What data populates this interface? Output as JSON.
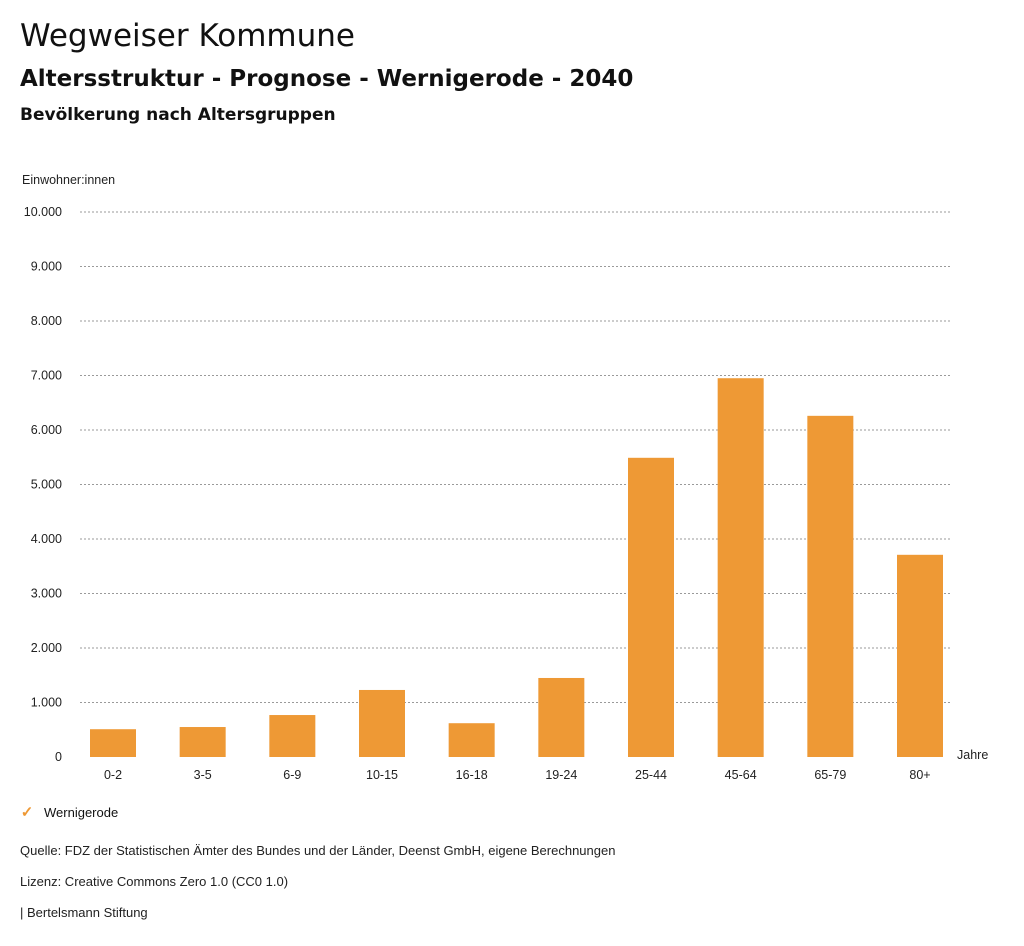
{
  "header": {
    "title": "Wegweiser Kommune",
    "subtitle": "Altersstruktur - Prognose - Wernigerode - 2040",
    "chart_title": "Bevölkerung nach Altersgruppen"
  },
  "legend": {
    "label": "Wernigerode",
    "icon": "check-icon"
  },
  "footer": {
    "source": "Quelle: FDZ der Statistischen Ämter des Bundes und der Länder, Deenst GmbH, eigene Berechnungen",
    "license": "Lizenz: Creative Commons Zero 1.0 (CC0 1.0)",
    "publisher": "| Bertelsmann Stiftung"
  },
  "colors": {
    "bar": "#ee9935",
    "grid": "#9a9a9a"
  },
  "chart_data": {
    "type": "bar",
    "title": "Bevölkerung nach Altersgruppen",
    "ylabel": "Einwohner:innen",
    "xlabel": "Jahre",
    "ylim": [
      0,
      10000
    ],
    "yticks": [
      0,
      1000,
      2000,
      3000,
      4000,
      5000,
      6000,
      7000,
      8000,
      9000,
      10000
    ],
    "ytick_labels": [
      "0",
      "1.000",
      "2.000",
      "3.000",
      "4.000",
      "5.000",
      "6.000",
      "7.000",
      "8.000",
      "9.000",
      "10.000"
    ],
    "categories": [
      "0-2",
      "3-5",
      "6-9",
      "10-15",
      "16-18",
      "19-24",
      "25-44",
      "45-64",
      "65-79",
      "80+"
    ],
    "series": [
      {
        "name": "Wernigerode",
        "values": [
          510,
          550,
          770,
          1230,
          620,
          1450,
          5490,
          6950,
          6260,
          3710
        ]
      }
    ],
    "grid": true,
    "legend_position": "bottom-left"
  }
}
